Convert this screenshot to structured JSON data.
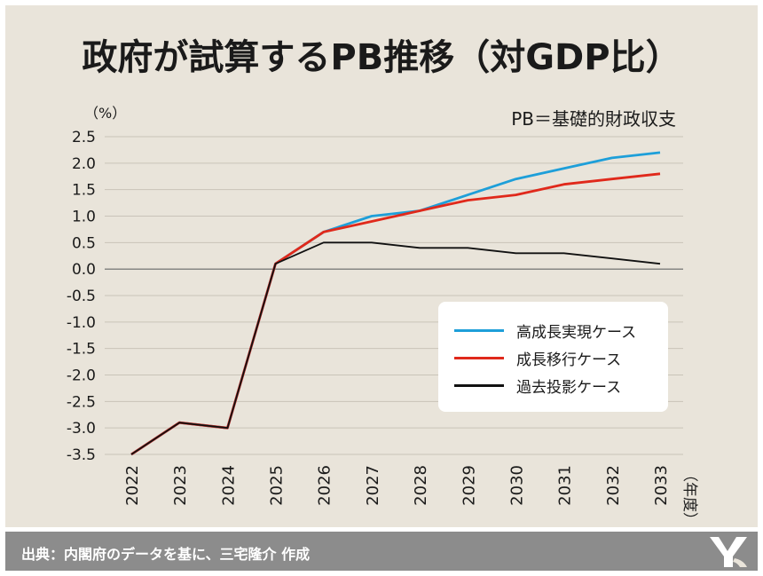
{
  "title": "政府が試算するPB推移（対GDP比）",
  "annotation": "PB＝基礎的財政収支",
  "source": "出典：内閣府のデータを基に、三宅隆介 作成",
  "colors": {
    "background": "#e9e4da",
    "footer": "#8c8c8c",
    "high_growth": "#1e9fd9",
    "transition": "#e0291b",
    "past": "#111111"
  },
  "chart_data": {
    "type": "line",
    "title": "政府が試算するPB推移（対GDP比）",
    "ylabel": "（%）",
    "xlabel": "（年度）",
    "ylim": [
      -3.5,
      2.5
    ],
    "yticks": [
      "2.5",
      "2.0",
      "1.5",
      "1.0",
      "0.5",
      "0.0",
      "-0.5",
      "-1.0",
      "-1.5",
      "-2.0",
      "-2.5",
      "-3.0",
      "-3.5"
    ],
    "x": [
      "2022",
      "2023",
      "2024",
      "2025",
      "2026",
      "2027",
      "2028",
      "2029",
      "2030",
      "2031",
      "2032",
      "2033"
    ],
    "grid": true,
    "legend_position": "lower-right",
    "series": [
      {
        "name": "高成長実現ケース",
        "color": "#1e9fd9",
        "values": [
          -3.5,
          -2.9,
          -3.0,
          0.1,
          0.7,
          1.0,
          1.1,
          1.4,
          1.7,
          1.9,
          2.1,
          2.2
        ]
      },
      {
        "name": "成長移行ケース",
        "color": "#e0291b",
        "values": [
          -3.5,
          -2.9,
          -3.0,
          0.1,
          0.7,
          0.9,
          1.1,
          1.3,
          1.4,
          1.6,
          1.7,
          1.8
        ]
      },
      {
        "name": "過去投影ケース",
        "color": "#111111",
        "values": [
          -3.5,
          -2.9,
          -3.0,
          0.1,
          0.5,
          0.5,
          0.4,
          0.4,
          0.3,
          0.3,
          0.2,
          0.1
        ]
      }
    ]
  }
}
